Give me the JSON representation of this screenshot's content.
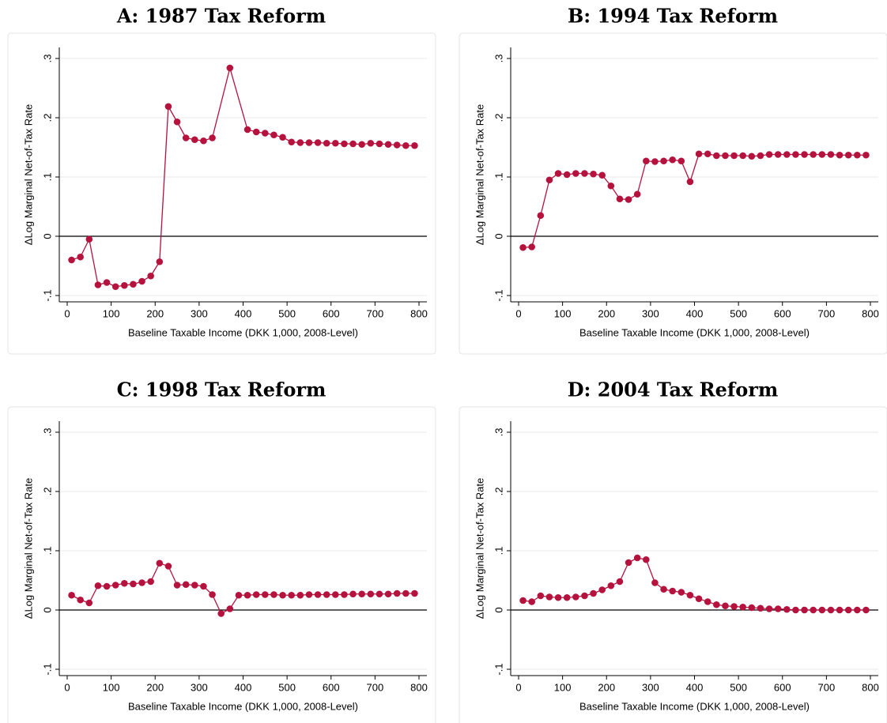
{
  "chart_data": [
    {
      "type": "line",
      "title": "A: 1987 Tax Reform",
      "x_label": "Baseline Taxable Income (DKK 1,000, 2008-Level)",
      "y_label": "ΔLog Marginal Net-of-Tax Rate",
      "x": [
        10,
        30,
        50,
        70,
        90,
        110,
        130,
        150,
        170,
        190,
        210,
        230,
        250,
        270,
        290,
        310,
        330,
        370,
        410,
        430,
        450,
        470,
        490,
        510,
        530,
        550,
        570,
        590,
        610,
        630,
        650,
        670,
        690,
        710,
        730,
        750,
        770,
        790
      ],
      "values": [
        -0.04,
        -0.035,
        -0.005,
        -0.082,
        -0.078,
        -0.085,
        -0.083,
        -0.081,
        -0.076,
        -0.067,
        -0.043,
        0.219,
        0.193,
        0.166,
        0.163,
        0.161,
        0.166,
        0.284,
        0.18,
        0.176,
        0.174,
        0.171,
        0.167,
        0.159,
        0.158,
        0.158,
        0.158,
        0.157,
        0.157,
        0.156,
        0.156,
        0.155,
        0.157,
        0.156,
        0.155,
        0.154,
        0.153,
        0.153
      ],
      "color": "#b5123e",
      "xlim": [
        0,
        800
      ],
      "xticks": [
        0,
        100,
        200,
        300,
        400,
        500,
        600,
        700,
        800
      ],
      "ylim": [
        -0.1,
        0.3
      ],
      "yticks": [
        {
          "value": -0.1,
          "label": "-.1"
        },
        0,
        {
          "value": 0.1,
          "label": ".1"
        },
        {
          "value": 0.2,
          "label": ".2"
        },
        {
          "value": 0.3,
          "label": ".3"
        }
      ],
      "grid": true,
      "hline": 0
    },
    {
      "type": "line",
      "title": "B: 1994 Tax Reform",
      "x_label": "Baseline Taxable Income (DKK 1,000, 2008-Level)",
      "y_label": "ΔLog Marginal Net-of-Tax Rate",
      "x": [
        10,
        30,
        50,
        70,
        90,
        110,
        130,
        150,
        170,
        190,
        210,
        230,
        250,
        270,
        290,
        310,
        330,
        350,
        370,
        390,
        410,
        430,
        450,
        470,
        490,
        510,
        530,
        550,
        570,
        590,
        610,
        630,
        650,
        670,
        690,
        710,
        730,
        750,
        770,
        790
      ],
      "values": [
        -0.019,
        -0.018,
        0.035,
        0.095,
        0.106,
        0.104,
        0.106,
        0.106,
        0.105,
        0.103,
        0.085,
        0.063,
        0.062,
        0.071,
        0.127,
        0.126,
        0.127,
        0.129,
        0.127,
        0.092,
        0.139,
        0.139,
        0.136,
        0.136,
        0.136,
        0.136,
        0.135,
        0.136,
        0.138,
        0.138,
        0.138,
        0.138,
        0.138,
        0.138,
        0.138,
        0.138,
        0.137,
        0.137,
        0.137,
        0.137
      ],
      "color": "#b5123e",
      "xlim": [
        0,
        800
      ],
      "xticks": [
        0,
        100,
        200,
        300,
        400,
        500,
        600,
        700,
        800
      ],
      "ylim": [
        -0.1,
        0.3
      ],
      "yticks": [
        {
          "value": -0.1,
          "label": "-.1"
        },
        0,
        {
          "value": 0.1,
          "label": ".1"
        },
        {
          "value": 0.2,
          "label": ".2"
        },
        {
          "value": 0.3,
          "label": ".3"
        }
      ],
      "grid": true,
      "hline": 0
    },
    {
      "type": "line",
      "title": "C: 1998 Tax Reform",
      "x_label": "Baseline Taxable Income (DKK 1,000, 2008-Level)",
      "y_label": "ΔLog Marginal Net-of-Tax Rate",
      "x": [
        10,
        30,
        50,
        70,
        90,
        110,
        130,
        150,
        170,
        190,
        210,
        230,
        250,
        270,
        290,
        310,
        330,
        350,
        370,
        390,
        410,
        430,
        450,
        470,
        490,
        510,
        530,
        550,
        570,
        590,
        610,
        630,
        650,
        670,
        690,
        710,
        730,
        750,
        770,
        790
      ],
      "values": [
        0.025,
        0.017,
        0.012,
        0.041,
        0.04,
        0.042,
        0.045,
        0.044,
        0.046,
        0.048,
        0.079,
        0.074,
        0.042,
        0.043,
        0.042,
        0.04,
        0.026,
        -0.006,
        0.002,
        0.025,
        0.025,
        0.026,
        0.026,
        0.026,
        0.025,
        0.025,
        0.025,
        0.026,
        0.026,
        0.026,
        0.026,
        0.026,
        0.027,
        0.027,
        0.027,
        0.027,
        0.027,
        0.028,
        0.028,
        0.028
      ],
      "color": "#b5123e",
      "xlim": [
        0,
        800
      ],
      "xticks": [
        0,
        100,
        200,
        300,
        400,
        500,
        600,
        700,
        800
      ],
      "ylim": [
        -0.1,
        0.3
      ],
      "yticks": [
        {
          "value": -0.1,
          "label": "-.1"
        },
        0,
        {
          "value": 0.1,
          "label": ".1"
        },
        {
          "value": 0.2,
          "label": ".2"
        },
        {
          "value": 0.3,
          "label": ".3"
        }
      ],
      "grid": true,
      "hline": 0
    },
    {
      "type": "line",
      "title": "D: 2004 Tax Reform",
      "x_label": "Baseline Taxable Income (DKK 1,000, 2008-Level)",
      "y_label": "ΔLog Marginal Net-of-Tax Rate",
      "x": [
        10,
        30,
        50,
        70,
        90,
        110,
        130,
        150,
        170,
        190,
        210,
        230,
        250,
        270,
        290,
        310,
        330,
        350,
        370,
        390,
        410,
        430,
        450,
        470,
        490,
        510,
        530,
        550,
        570,
        590,
        610,
        630,
        650,
        670,
        690,
        710,
        730,
        750,
        770,
        790
      ],
      "values": [
        0.016,
        0.014,
        0.024,
        0.022,
        0.021,
        0.021,
        0.022,
        0.024,
        0.028,
        0.034,
        0.041,
        0.048,
        0.08,
        0.088,
        0.085,
        0.046,
        0.035,
        0.032,
        0.03,
        0.025,
        0.019,
        0.014,
        0.009,
        0.007,
        0.006,
        0.005,
        0.004,
        0.003,
        0.002,
        0.002,
        0.001,
        0,
        0,
        0,
        0,
        0,
        0,
        0,
        0,
        0
      ],
      "color": "#b5123e",
      "xlim": [
        0,
        800
      ],
      "xticks": [
        0,
        100,
        200,
        300,
        400,
        500,
        600,
        700,
        800
      ],
      "ylim": [
        -0.1,
        0.3
      ],
      "yticks": [
        {
          "value": -0.1,
          "label": "-.1"
        },
        0,
        {
          "value": 0.1,
          "label": ".1"
        },
        {
          "value": 0.2,
          "label": ".2"
        },
        {
          "value": 0.3,
          "label": ".3"
        }
      ],
      "grid": true,
      "hline": 0
    }
  ]
}
